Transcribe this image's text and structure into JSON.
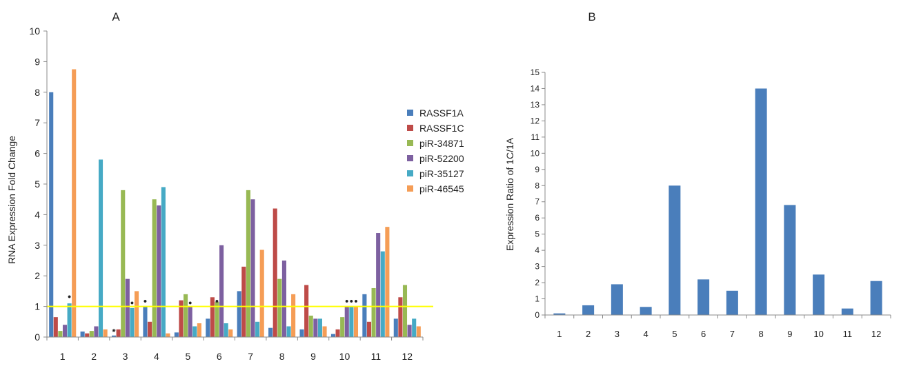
{
  "chart_data": [
    {
      "type": "bar",
      "panel_label": "A",
      "title": "",
      "xlabel": "",
      "ylabel": "RNA Expression Fold Change",
      "ylim": [
        0,
        10
      ],
      "yticks": [
        "0",
        "1",
        "2",
        "3",
        "4",
        "5",
        "6",
        "7",
        "8",
        "9",
        "10"
      ],
      "categories": [
        "1",
        "2",
        "3",
        "4",
        "5",
        "6",
        "7",
        "8",
        "9",
        "10",
        "11",
        "12"
      ],
      "grid": false,
      "legend_position": "right",
      "reference_line": {
        "value": 1,
        "color": "#ffff00"
      },
      "series": [
        {
          "name": "RASSF1A",
          "color": "#4a7ebb",
          "values": [
            8.0,
            0.18,
            0.05,
            1.0,
            0.15,
            0.6,
            1.5,
            0.3,
            0.25,
            0.1,
            1.4,
            0.6
          ]
        },
        {
          "name": "RASSF1C",
          "color": "#be4b48",
          "values": [
            0.65,
            0.12,
            0.25,
            0.5,
            1.2,
            1.3,
            2.3,
            4.2,
            1.7,
            0.25,
            0.5,
            1.3
          ]
        },
        {
          "name": "piR-34871",
          "color": "#98b954",
          "values": [
            0.2,
            0.2,
            4.8,
            4.5,
            1.4,
            1.15,
            4.8,
            1.9,
            0.7,
            0.65,
            1.6,
            1.7
          ]
        },
        {
          "name": "piR-52200",
          "color": "#7d60a0",
          "values": [
            0.4,
            0.35,
            1.9,
            4.3,
            1.0,
            3.0,
            4.5,
            2.5,
            0.6,
            1.0,
            3.4,
            0.4
          ]
        },
        {
          "name": "piR-35127",
          "color": "#46aac5",
          "values": [
            1.1,
            5.8,
            0.95,
            4.9,
            0.35,
            0.45,
            0.5,
            0.35,
            0.6,
            1.0,
            2.8,
            0.6
          ]
        },
        {
          "name": "piR-46545",
          "color": "#f59d56",
          "values": [
            8.75,
            0.25,
            1.5,
            0.12,
            0.45,
            0.25,
            2.85,
            1.4,
            0.35,
            1.0,
            3.6,
            0.35
          ]
        }
      ],
      "annotations": [
        {
          "symbol": "•",
          "category": "1",
          "series": "piR-35127",
          "y": 1.15
        },
        {
          "symbol": "*",
          "category": "3",
          "series": "RASSF1A",
          "y": 0.05
        },
        {
          "symbol": "•",
          "category": "3",
          "series": "piR-35127",
          "y": 0.95
        },
        {
          "symbol": "•",
          "category": "4",
          "series": "RASSF1A",
          "y": 1.0
        },
        {
          "symbol": "•",
          "category": "5",
          "series": "piR-52200",
          "y": 0.95
        },
        {
          "symbol": "•",
          "category": "6",
          "series": "piR-34871",
          "y": 1.0
        },
        {
          "symbol": "•",
          "category": "10",
          "series": "piR-52200",
          "y": 1.0
        },
        {
          "symbol": "•",
          "category": "10",
          "series": "piR-35127",
          "y": 1.0
        },
        {
          "symbol": "•",
          "category": "10",
          "series": "piR-46545",
          "y": 1.0
        }
      ]
    },
    {
      "type": "bar",
      "panel_label": "B",
      "title": "",
      "xlabel": "",
      "ylabel": "Expression Ratio of 1C/1A",
      "ylim": [
        0,
        15
      ],
      "yticks": [
        "0",
        "1",
        "2",
        "3",
        "4",
        "5",
        "6",
        "7",
        "8",
        "9",
        "10",
        "11",
        "12",
        "13",
        "14",
        "15"
      ],
      "categories": [
        "1",
        "2",
        "3",
        "4",
        "5",
        "6",
        "7",
        "8",
        "9",
        "10",
        "11",
        "12"
      ],
      "grid": false,
      "color": "#4a7ebb",
      "values": [
        0.1,
        0.6,
        1.9,
        0.5,
        8.0,
        2.2,
        1.5,
        14.0,
        6.8,
        2.5,
        0.4,
        2.1
      ]
    }
  ]
}
